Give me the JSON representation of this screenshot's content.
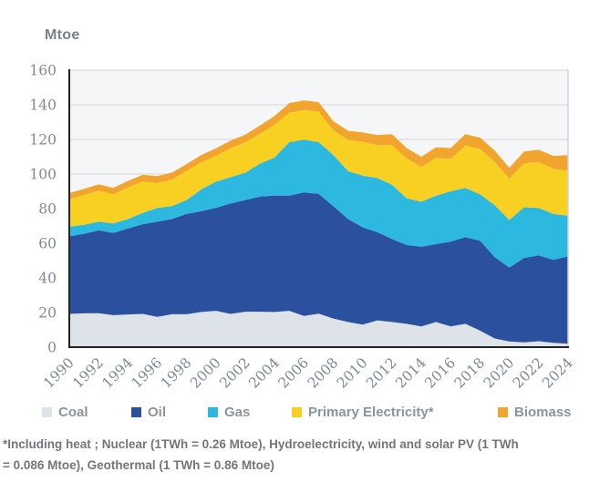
{
  "title": "Mtoe",
  "chart_data": {
    "type": "area",
    "stacked": true,
    "title": "Mtoe",
    "xlabel": "",
    "ylabel": "Mtoe",
    "ylim": [
      0,
      160
    ],
    "y_tick_step": 20,
    "x_tick_step": 2,
    "grid": "horizontal",
    "legend_position": "bottom",
    "x": [
      1990,
      1991,
      1992,
      1993,
      1994,
      1995,
      1996,
      1997,
      1998,
      1999,
      2000,
      2001,
      2002,
      2003,
      2004,
      2005,
      2006,
      2007,
      2008,
      2009,
      2010,
      2011,
      2012,
      2013,
      2014,
      2015,
      2016,
      2017,
      2018,
      2019,
      2020,
      2021,
      2022,
      2023,
      2024
    ],
    "series": [
      {
        "name": "Coal",
        "color": "#dde3e9",
        "values": [
          19.2,
          19.5,
          19.6,
          18.5,
          18.9,
          19.2,
          17.5,
          19.0,
          19.0,
          20.3,
          21.0,
          19.2,
          20.5,
          20.5,
          20.3,
          21.0,
          18.0,
          19.3,
          16.5,
          14.5,
          13.0,
          15.5,
          14.5,
          13.5,
          12.0,
          14.5,
          12.0,
          13.5,
          9.5,
          5.0,
          3.3,
          2.8,
          3.4,
          2.5,
          2.0
        ]
      },
      {
        "name": "Oil",
        "color": "#2b519e",
        "values": [
          44.8,
          46.0,
          47.9,
          47.5,
          49.6,
          51.8,
          55.0,
          55.0,
          58.0,
          58.2,
          59.5,
          63.8,
          64.5,
          66.5,
          67.3,
          66.6,
          71.4,
          69.2,
          65.0,
          59.5,
          56.2,
          51.0,
          48.0,
          45.5,
          46.0,
          45.0,
          49.0,
          50.0,
          52.0,
          47.0,
          42.7,
          48.7,
          49.6,
          48.0,
          50.4
        ]
      },
      {
        "name": "Gas",
        "color": "#2cb8df",
        "values": [
          5.5,
          5.2,
          5.0,
          5.5,
          5.5,
          6.5,
          8.0,
          7.4,
          8.0,
          12.7,
          15.1,
          15.2,
          15.8,
          19.0,
          22.0,
          30.8,
          30.5,
          29.9,
          29.5,
          27.7,
          29.9,
          31.2,
          31.3,
          27.0,
          26.0,
          28.0,
          29.0,
          28.5,
          26.8,
          30.0,
          27.4,
          29.3,
          27.4,
          26.5,
          23.5
        ]
      },
      {
        "name": "Primary Electricity*",
        "color": "#f8d021",
        "values": [
          16.0,
          17.2,
          17.9,
          16.8,
          18.2,
          18.2,
          14.4,
          15.4,
          16.8,
          15.6,
          15.0,
          16.7,
          17.5,
          17.2,
          18.9,
          17.1,
          17.1,
          17.6,
          14.2,
          18.1,
          19.4,
          19.0,
          23.0,
          23.0,
          20.0,
          21.8,
          18.7,
          24.5,
          26.2,
          25.0,
          23.8,
          25.4,
          26.6,
          26.0,
          26.0
        ]
      },
      {
        "name": "Biomass",
        "color": "#f1a42e",
        "values": [
          3.5,
          3.6,
          3.6,
          3.7,
          3.8,
          3.8,
          3.9,
          4.0,
          4.0,
          4.2,
          4.3,
          4.4,
          4.5,
          4.8,
          5.0,
          5.5,
          5.5,
          5.5,
          5.3,
          5.2,
          5.5,
          5.8,
          6.2,
          6.0,
          6.0,
          6.2,
          6.3,
          6.5,
          6.5,
          6.5,
          6.3,
          6.8,
          7.0,
          7.5,
          9.0
        ]
      }
    ]
  },
  "axes": {
    "y_labels": [
      "0",
      "20",
      "40",
      "60",
      "80",
      "100",
      "120",
      "140",
      "160"
    ],
    "x_labels": [
      "1990",
      "1992",
      "1994",
      "1996",
      "1998",
      "2000",
      "2002",
      "2004",
      "2006",
      "2008",
      "2010",
      "2012",
      "2014",
      "2016",
      "2018",
      "2020",
      "2022",
      "2024"
    ]
  },
  "footnote": {
    "line1": "*Including heat ; Nuclear (1TWh = 0.26 Mtoe), Hydroelectricity, wind and solar PV (1 TWh",
    "line2": "= 0.086 Mtoe), Geothermal (1 TWh = 0.86 Mtoe)"
  },
  "colors": {
    "plot_bg": "#f5f6f8",
    "grid": "#d9dcde",
    "axis_dark": "#202124",
    "axis_light": "#cfd3d6",
    "tick_text": "#7e8a96",
    "legend_text": "#8a949e",
    "footnote_text": "#747578",
    "title_text": "#76838c"
  }
}
